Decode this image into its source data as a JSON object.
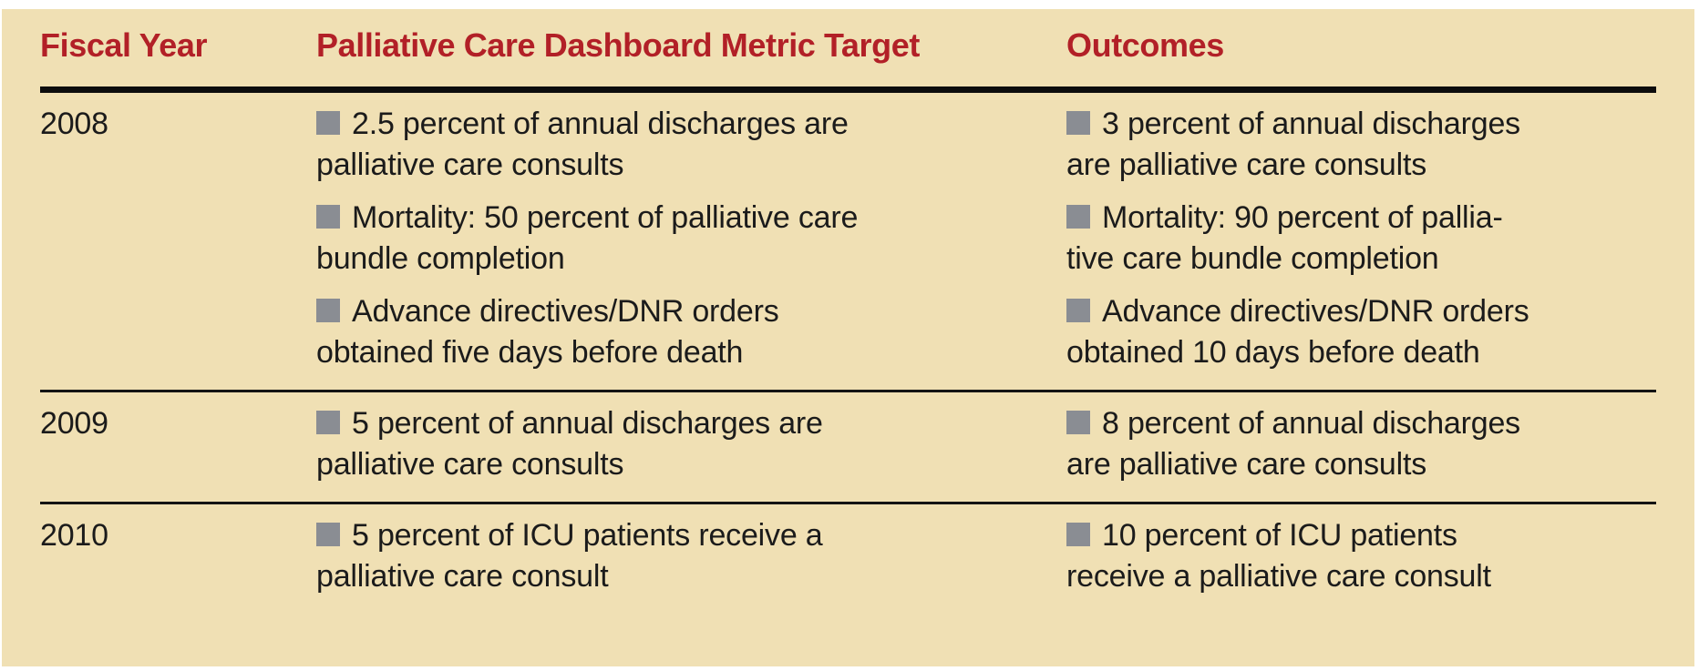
{
  "figure": {
    "columns": [
      "Fiscal Year",
      "Palliative Care Dashboard Metric Target",
      "Outcomes"
    ],
    "rows": [
      {
        "year": "2008",
        "targets": [
          {
            "lines": [
              "2.5 percent of annual discharges are",
              "palliative care consults"
            ]
          },
          {
            "lines": [
              "Mortality: 50 percent of palliative care",
              "bundle completion"
            ]
          },
          {
            "lines": [
              "Advance directives/DNR orders",
              "obtained five days before death"
            ]
          }
        ],
        "outcomes": [
          {
            "lines": [
              "3 percent of annual discharges",
              "are palliative care consults"
            ]
          },
          {
            "lines": [
              "Mortality: 90 percent of pallia-",
              "tive care bundle completion"
            ]
          },
          {
            "lines": [
              "Advance directives/DNR orders",
              "obtained 10 days before death"
            ]
          }
        ]
      },
      {
        "year": "2009",
        "targets": [
          {
            "lines": [
              "5 percent of annual discharges are",
              "palliative care consults"
            ]
          }
        ],
        "outcomes": [
          {
            "lines": [
              "8 percent of annual discharges",
              "are palliative care consults"
            ]
          }
        ]
      },
      {
        "year": "2010",
        "targets": [
          {
            "lines": [
              "5 percent of ICU patients receive a",
              "palliative care consult"
            ]
          }
        ],
        "outcomes": [
          {
            "lines": [
              "10 percent of ICU patients",
              "receive a palliative care consult"
            ]
          }
        ]
      }
    ]
  },
  "colors": {
    "panel_background": "#f0e0b4",
    "header_text": "#b22027",
    "body_text": "#1b1b1b",
    "bullet_square": "#8a8d93",
    "rule": "#0d0d0d"
  }
}
